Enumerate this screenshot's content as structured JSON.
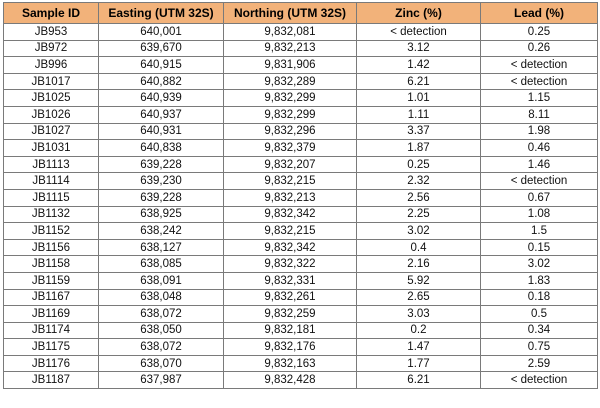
{
  "colors": {
    "header_bg": "#f2b27a",
    "border": "#7a7a7a"
  },
  "table": {
    "headers": [
      "Sample ID",
      "Easting (UTM 32S)",
      "Northing (UTM 32S)",
      "Zinc (%)",
      "Lead (%)"
    ],
    "rows": [
      [
        "JB953",
        "640,001",
        "9,832,081",
        "< detection",
        "0.25"
      ],
      [
        "JB972",
        "639,670",
        "9,832,213",
        "3.12",
        "0.26"
      ],
      [
        "JB996",
        "640,915",
        "9,831,906",
        "1.42",
        "< detection"
      ],
      [
        "JB1017",
        "640,882",
        "9,832,289",
        "6.21",
        "< detection"
      ],
      [
        "JB1025",
        "640,939",
        "9,832,299",
        "1.01",
        "1.15"
      ],
      [
        "JB1026",
        "640,937",
        "9,832,299",
        "1.11",
        "8.11"
      ],
      [
        "JB1027",
        "640,931",
        "9,832,296",
        "3.37",
        "1.98"
      ],
      [
        "JB1031",
        "640,838",
        "9,832,379",
        "1.87",
        "0.46"
      ],
      [
        "JB1113",
        "639,228",
        "9,832,207",
        "0.25",
        "1.46"
      ],
      [
        "JB1114",
        "639,230",
        "9,832,215",
        "2.32",
        "< detection"
      ],
      [
        "JB1115",
        "639,228",
        "9,832,213",
        "2.56",
        "0.67"
      ],
      [
        "JB1132",
        "638,925",
        "9,832,342",
        "2.25",
        "1.08"
      ],
      [
        "JB1152",
        "638,242",
        "9,832,215",
        "3.02",
        "1.5"
      ],
      [
        "JB1156",
        "638,127",
        "9,832,342",
        "0.4",
        "0.15"
      ],
      [
        "JB1158",
        "638,085",
        "9,832,322",
        "2.16",
        "3.02"
      ],
      [
        "JB1159",
        "638,091",
        "9,832,331",
        "5.92",
        "1.83"
      ],
      [
        "JB1167",
        "638,048",
        "9,832,261",
        "2.65",
        "0.18"
      ],
      [
        "JB1169",
        "638,072",
        "9,832,259",
        "3.03",
        "0.5"
      ],
      [
        "JB1174",
        "638,050",
        "9,832,181",
        "0.2",
        "0.34"
      ],
      [
        "JB1175",
        "638,072",
        "9,832,176",
        "1.47",
        "0.75"
      ],
      [
        "JB1176",
        "638,070",
        "9,832,163",
        "1.77",
        "2.59"
      ],
      [
        "JB1187",
        "637,987",
        "9,832,428",
        "6.21",
        "< detection"
      ]
    ]
  }
}
